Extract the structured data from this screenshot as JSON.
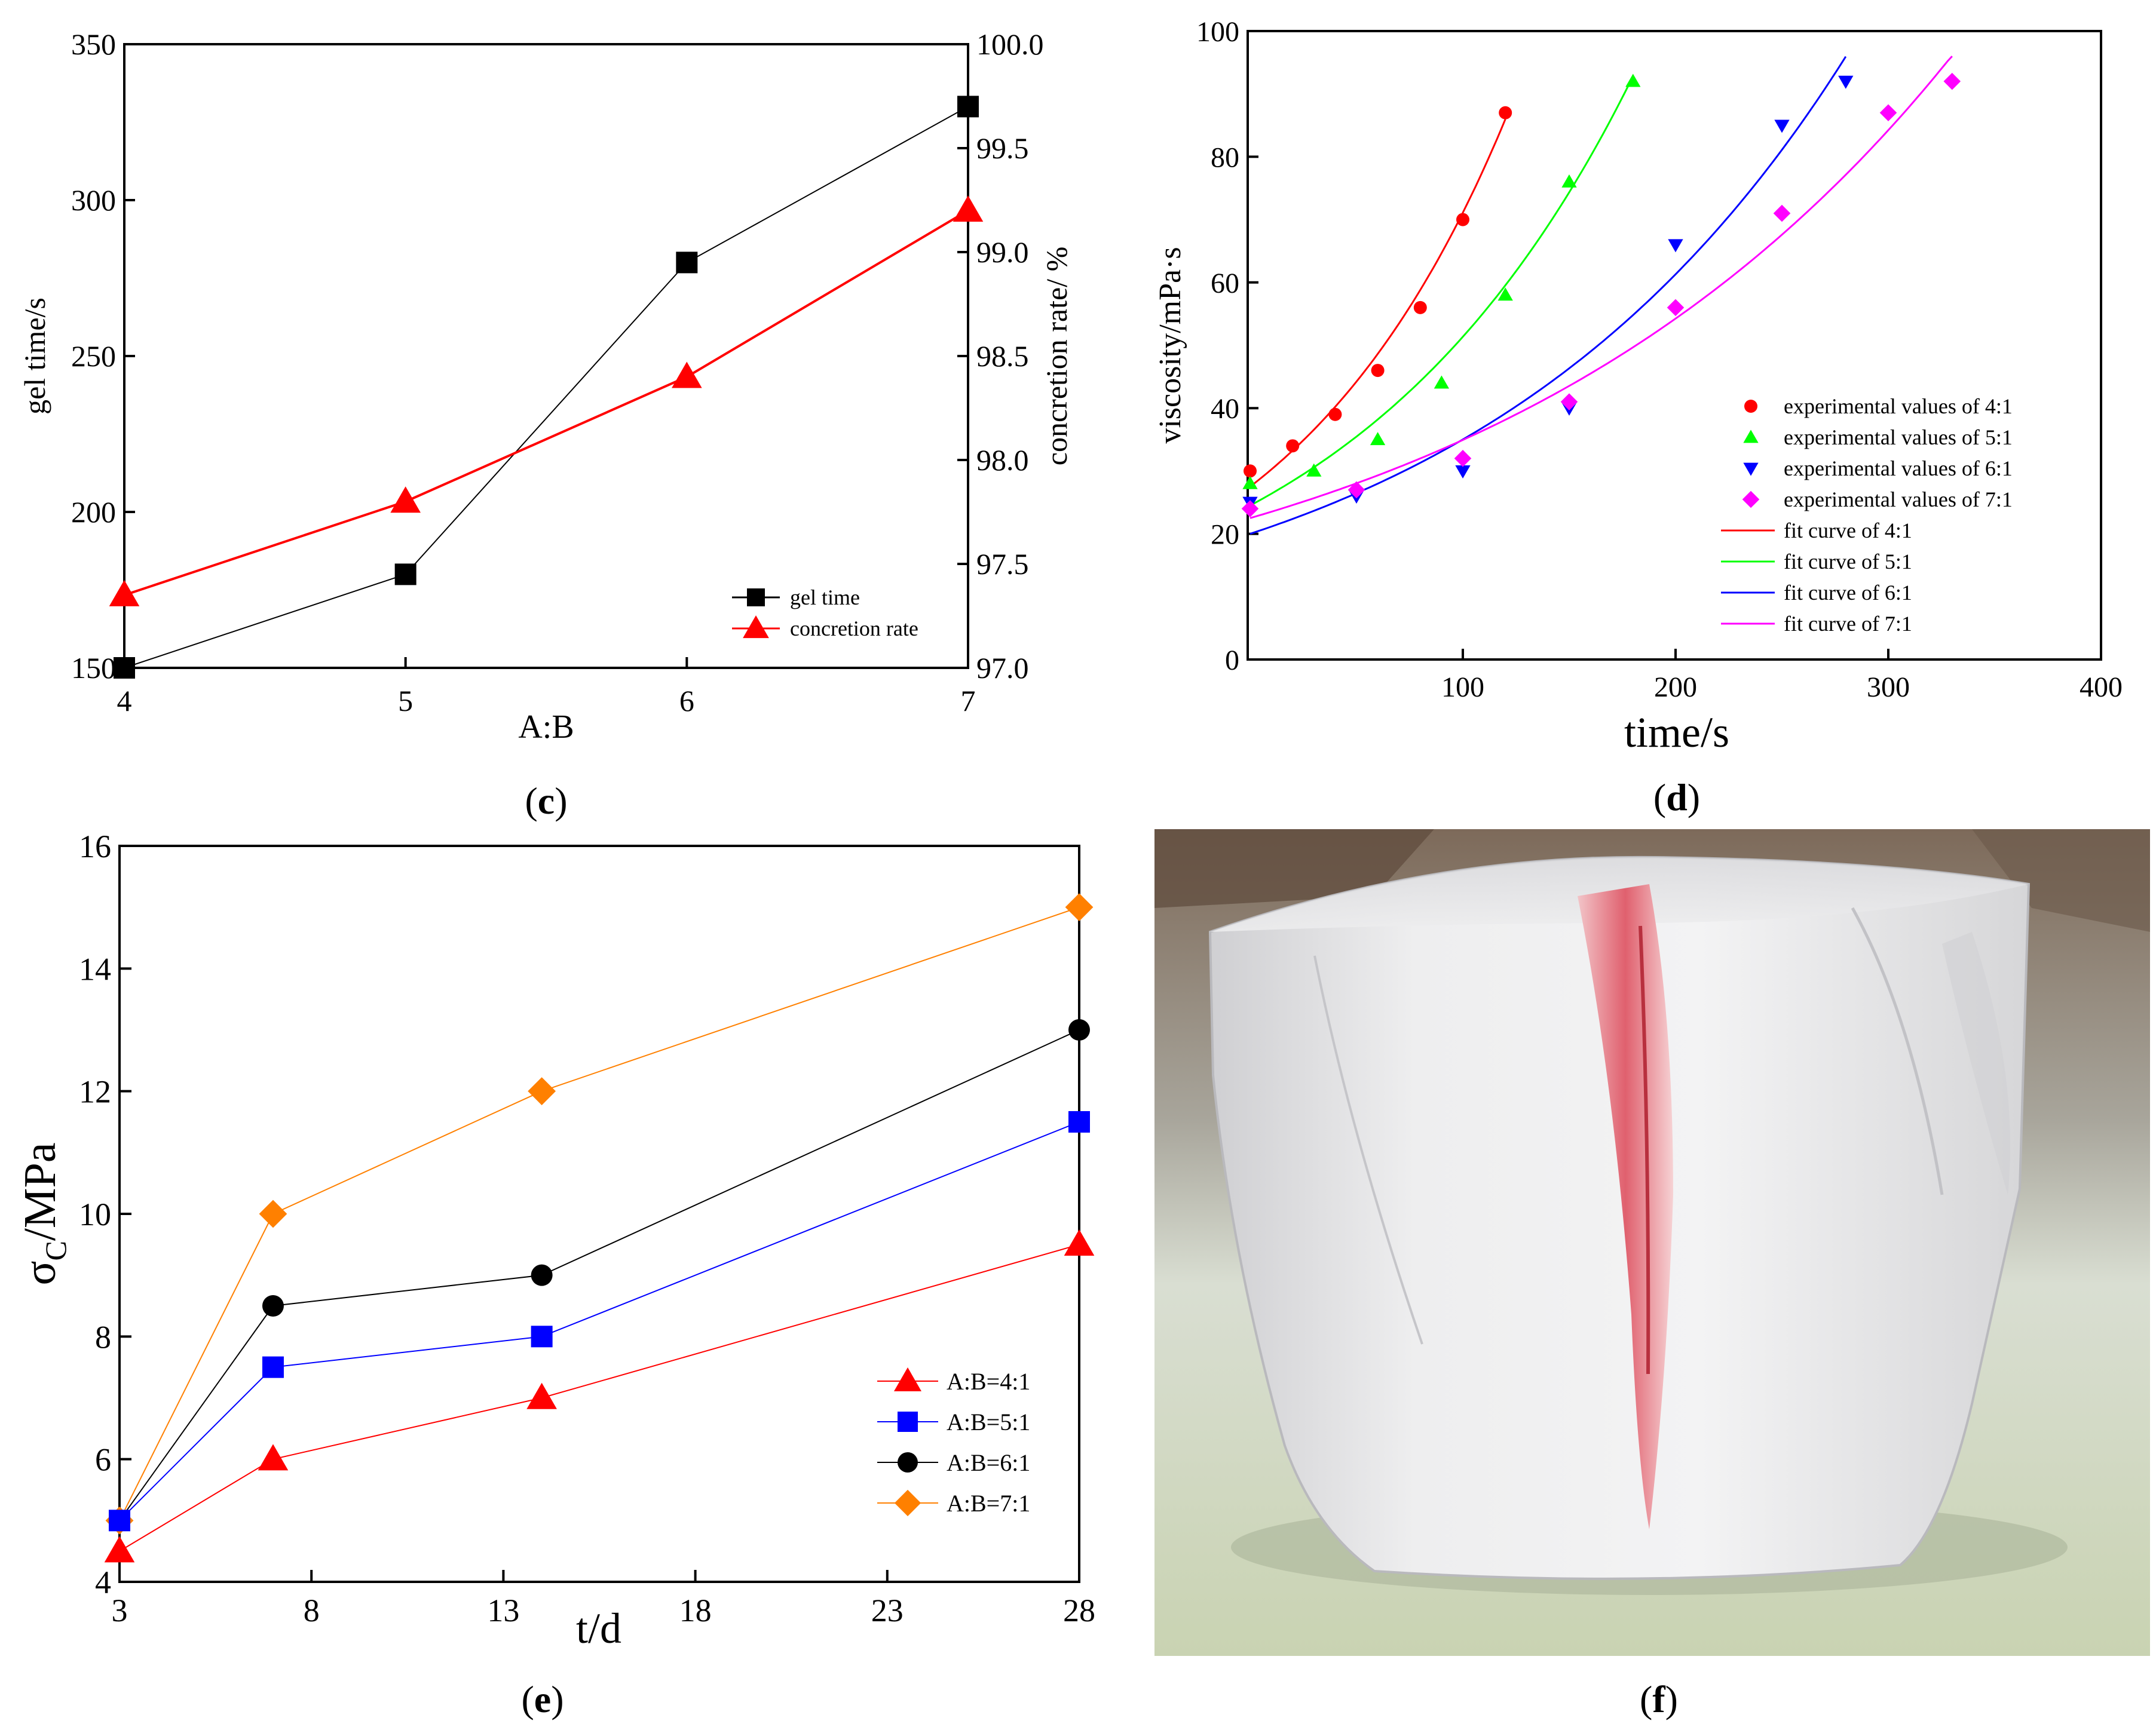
{
  "chart_data": [
    {
      "id": "c",
      "type": "line",
      "panel_label": "c",
      "xlabel": "A:B",
      "ylabel": "gel time/s",
      "y2label": "concretion rate/ %",
      "x": [
        4,
        5,
        6,
        7
      ],
      "xlim": [
        4,
        7
      ],
      "xticks": [
        "4",
        "5",
        "6",
        "7"
      ],
      "ylim": [
        150,
        350
      ],
      "yticks": [
        "150",
        "200",
        "250",
        "300",
        "350"
      ],
      "y2lim": [
        97.0,
        100.0
      ],
      "y2ticks": [
        "97.0",
        "97.5",
        "98.0",
        "98.5",
        "99.0",
        "99.5",
        "100.0"
      ],
      "legend_position": "bottom-right",
      "series": [
        {
          "name": "gel time",
          "axis": "left",
          "color": "#000000",
          "marker": "square",
          "values": [
            150,
            180,
            280,
            330
          ]
        },
        {
          "name": "concretion rate",
          "axis": "right",
          "color": "#ff0000",
          "marker": "triangle",
          "values": [
            97.35,
            97.8,
            98.4,
            99.2
          ]
        }
      ]
    },
    {
      "id": "d",
      "type": "scatter",
      "panel_label": "d",
      "xlabel": "time/s",
      "ylabel": "viscosity/mPa·s",
      "xlim": [
        0,
        400
      ],
      "xticks": [
        "100",
        "200",
        "300",
        "400"
      ],
      "ylim": [
        0,
        100
      ],
      "yticks": [
        "0",
        "20",
        "40",
        "60",
        "80",
        "100"
      ],
      "legend_position": "center-right",
      "series": [
        {
          "name": "experimental values of 4:1",
          "color": "#ff0000",
          "marker": "circle",
          "x": [
            0,
            20,
            40,
            60,
            80,
            100,
            120
          ],
          "values": [
            30,
            34,
            39,
            46,
            56,
            70,
            87
          ]
        },
        {
          "name": "experimental values of 5:1",
          "color": "#00ff00",
          "marker": "triangle",
          "x": [
            0,
            30,
            60,
            90,
            120,
            150,
            180
          ],
          "values": [
            28,
            30,
            35,
            44,
            58,
            76,
            92
          ]
        },
        {
          "name": "experimental values of 6:1",
          "color": "#0000ff",
          "marker": "triangle-down",
          "x": [
            0,
            50,
            100,
            150,
            200,
            250,
            280
          ],
          "values": [
            25,
            26,
            30,
            40,
            66,
            85,
            92
          ]
        },
        {
          "name": "experimental values of 7:1",
          "color": "#ff00ff",
          "marker": "diamond",
          "x": [
            0,
            50,
            100,
            150,
            200,
            250,
            300,
            330
          ],
          "values": [
            24,
            27,
            32,
            41,
            56,
            71,
            87,
            92
          ]
        }
      ],
      "fits": [
        {
          "name": "fit curve of 4:1",
          "color": "#ff0000",
          "a": 27.5,
          "b": 0.0095,
          "xmax": 120
        },
        {
          "name": "fit curve of 5:1",
          "color": "#00ff00",
          "a": 24.5,
          "b": 0.0074,
          "xmax": 180
        },
        {
          "name": "fit curve of 6:1",
          "color": "#0000ff",
          "a": 20.0,
          "b": 0.0056,
          "xmax": 280
        },
        {
          "name": "fit curve of 7:1",
          "color": "#ff00ff",
          "a": 22.5,
          "b": 0.0044,
          "xmax": 330
        }
      ]
    },
    {
      "id": "e",
      "type": "line",
      "panel_label": "e",
      "xlabel": "t/d",
      "ylabel_main": "σ",
      "ylabel_sub": "C",
      "ylabel_tail": "/MPa",
      "x": [
        3,
        7,
        14,
        28
      ],
      "xlim": [
        3,
        28
      ],
      "xticks": [
        "3",
        "8",
        "13",
        "18",
        "23",
        "28"
      ],
      "ylim": [
        4,
        16
      ],
      "yticks": [
        "4",
        "6",
        "8",
        "10",
        "12",
        "14",
        "16"
      ],
      "legend_position": "bottom-right",
      "series": [
        {
          "name": "A:B=4:1",
          "color": "#ff0000",
          "marker": "triangle",
          "values": [
            4.5,
            6,
            7,
            9.5
          ]
        },
        {
          "name": "A:B=5:1",
          "color": "#0000ff",
          "marker": "square",
          "values": [
            5,
            7.5,
            8,
            11.5
          ]
        },
        {
          "name": "A:B=6:1",
          "color": "#000000",
          "marker": "circle",
          "values": [
            5,
            8.5,
            9,
            13
          ]
        },
        {
          "name": "A:B=7:1",
          "color": "#ff8000",
          "marker": "diamond",
          "values": [
            5,
            10,
            12,
            15
          ]
        }
      ]
    }
  ],
  "panel_f": {
    "label": "f"
  }
}
